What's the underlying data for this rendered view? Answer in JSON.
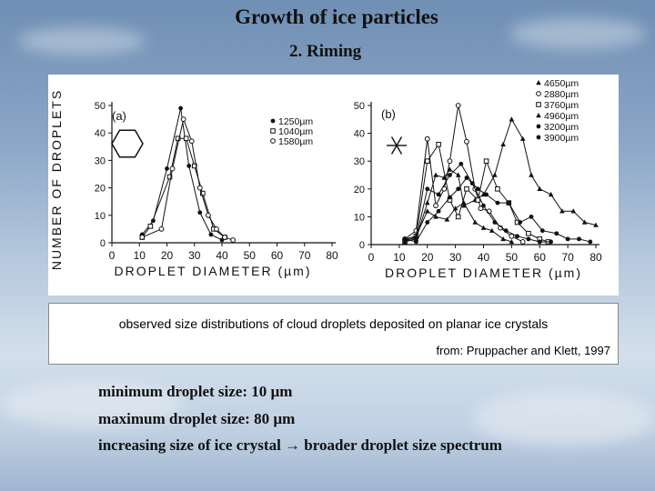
{
  "title": "Growth of ice particles",
  "subtitle": "2. Riming",
  "caption": "observed size distributions of cloud droplets deposited on planar ice crystals",
  "source": "from: Pruppacher and Klett, 1997",
  "notes": [
    "minimum droplet size: 10 µm",
    "maximum droplet size: 80 µm",
    "increasing size of ice crystal → broader droplet size spectrum"
  ],
  "chart_data": [
    {
      "type": "line",
      "panel_label": "(a)",
      "xlabel": "DROPLET DIAMETER (µm)",
      "ylabel": "NUMBER OF DROPLETS",
      "xlim": [
        0,
        80
      ],
      "ylim": [
        0,
        50
      ],
      "xticks": [
        0,
        10,
        20,
        30,
        40,
        50,
        60,
        70,
        80
      ],
      "yticks": [
        0,
        10,
        20,
        30,
        40,
        50
      ],
      "series": [
        {
          "name": "1250µm",
          "marker": "dot",
          "x": [
            11,
            15,
            20,
            25,
            28,
            32,
            36,
            40
          ],
          "y": [
            3,
            8,
            27,
            49,
            28,
            11,
            3,
            1
          ]
        },
        {
          "name": "1040µm",
          "marker": "square",
          "x": [
            11,
            14,
            21,
            24,
            27,
            30,
            33,
            37,
            41
          ],
          "y": [
            2,
            6,
            24,
            38,
            38,
            28,
            18,
            5,
            2
          ]
        },
        {
          "name": "1580µm",
          "marker": "circle",
          "x": [
            11,
            18,
            22,
            26,
            29,
            32,
            35,
            38,
            41,
            44
          ],
          "y": [
            2,
            5,
            27,
            45,
            37,
            20,
            10,
            5,
            2,
            1
          ]
        }
      ]
    },
    {
      "type": "line",
      "panel_label": "(b)",
      "xlabel": "DROPLET DIAMETER (µm)",
      "ylabel": "",
      "xlim": [
        0,
        80
      ],
      "ylim": [
        0,
        50
      ],
      "xticks": [
        0,
        10,
        20,
        30,
        40,
        50,
        60,
        70,
        80
      ],
      "yticks": [
        0,
        10,
        20,
        30,
        40,
        50
      ],
      "series": [
        {
          "name": "4650µm",
          "marker": "triangle",
          "x": [
            12,
            16,
            20,
            23,
            26,
            28,
            31,
            33,
            37,
            40,
            44,
            47,
            50,
            54,
            57,
            60,
            64,
            68,
            72,
            76,
            80
          ],
          "y": [
            2,
            2,
            15,
            25,
            24,
            27,
            25,
            14,
            16,
            18,
            25,
            36,
            45,
            38,
            25,
            20,
            18,
            12,
            12,
            8,
            7
          ]
        },
        {
          "name": "2880µm",
          "marker": "circle",
          "x": [
            12,
            16,
            20,
            23,
            26,
            28,
            31,
            34,
            37,
            39,
            42,
            46,
            50,
            54
          ],
          "y": [
            2,
            5,
            38,
            14,
            20,
            30,
            50,
            37,
            20,
            13,
            12,
            6,
            3,
            1
          ]
        },
        {
          "name": "3760µm",
          "marker": "square",
          "x": [
            12,
            16,
            20,
            24,
            28,
            31,
            34,
            38,
            41,
            45,
            49,
            52,
            56,
            60,
            63
          ],
          "y": [
            1,
            3,
            30,
            36,
            16,
            10,
            20,
            16,
            30,
            20,
            15,
            8,
            4,
            2,
            1
          ]
        },
        {
          "name": "4960µm",
          "marker": "triangle",
          "x": [
            12,
            16,
            20,
            23,
            27,
            30,
            33,
            37,
            40,
            43,
            47,
            50
          ],
          "y": [
            2,
            3,
            12,
            10,
            9,
            13,
            15,
            8,
            6,
            5,
            2,
            1
          ]
        },
        {
          "name": "3200µm",
          "marker": "dot",
          "x": [
            12,
            16,
            20,
            24,
            28,
            31,
            34,
            38,
            41,
            45,
            49,
            53,
            57,
            61,
            66,
            70,
            74,
            78
          ],
          "y": [
            2,
            1,
            8,
            12,
            17,
            20,
            24,
            20,
            18,
            15,
            15,
            8,
            10,
            5,
            4,
            2,
            2,
            1
          ]
        },
        {
          "name": "3900µm",
          "marker": "dot",
          "x": [
            12,
            16,
            20,
            24,
            28,
            32,
            36,
            40,
            44,
            48,
            52,
            56,
            60,
            64
          ],
          "y": [
            1,
            2,
            20,
            18,
            25,
            29,
            22,
            14,
            8,
            5,
            3,
            2,
            1,
            1
          ]
        }
      ]
    }
  ]
}
